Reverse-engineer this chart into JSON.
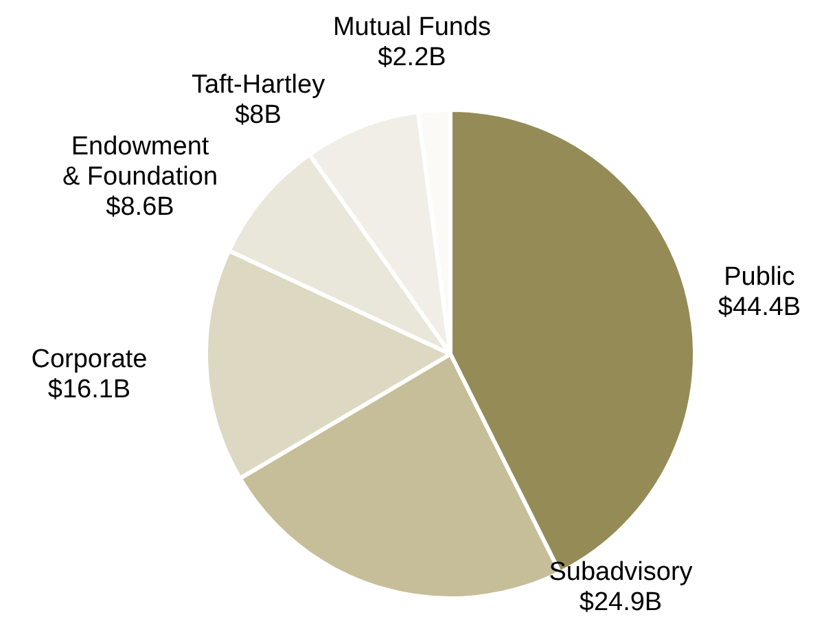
{
  "chart_data": {
    "type": "pie",
    "categories": [
      "Public",
      "Subadvisory",
      "Corporate",
      "Endowment & Foundation",
      "Taft-Hartley",
      "Mutual Funds"
    ],
    "values": [
      44.4,
      24.9,
      16.1,
      8.6,
      8,
      2.2
    ],
    "value_labels": [
      "$44.4B",
      "$24.9B",
      "$16.1B",
      "$8.6B",
      "$8B",
      "$2.2B"
    ],
    "colors": [
      "#948b56",
      "#c5be99",
      "#dcd8c2",
      "#e9e6da",
      "#f0eee6",
      "#fbfaf7"
    ]
  }
}
